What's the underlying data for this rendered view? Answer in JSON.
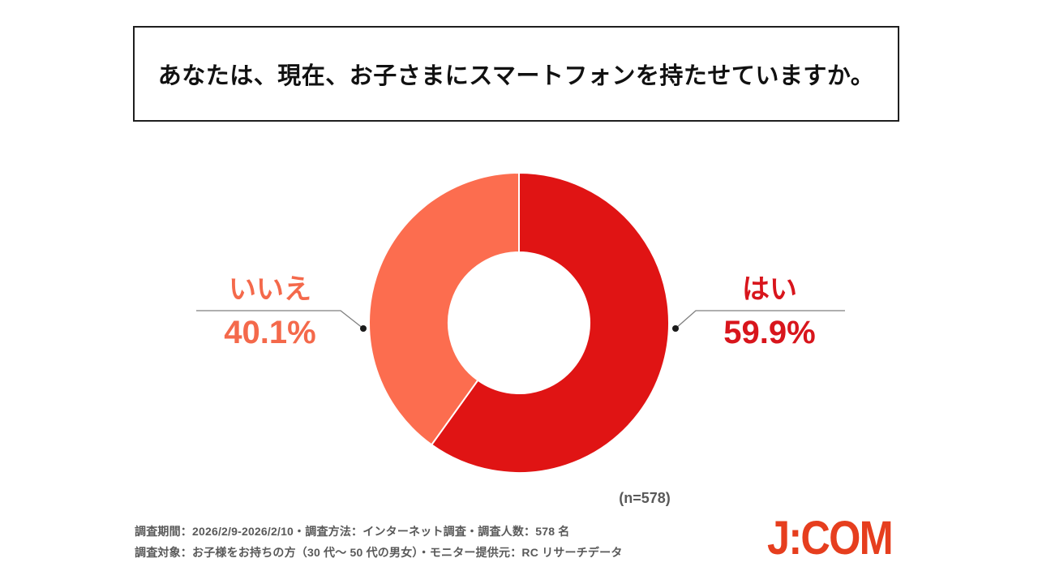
{
  "title": "あなたは、現在、お子さまにスマートフォンを持たせていますか。",
  "chart_data": {
    "type": "pie",
    "subtype": "donut",
    "title": "あなたは、現在、お子さまにスマートフォンを持たせていますか。",
    "categories": [
      "はい",
      "いいえ"
    ],
    "values": [
      59.9,
      40.1
    ],
    "unit": "%",
    "colors": [
      "#E01414",
      "#FC6D4F"
    ],
    "label_colors": [
      "#D8151C",
      "#F4694B"
    ],
    "start_angle": "top",
    "direction": "clockwise",
    "inner_radius_ratio": 0.47,
    "legend": "none",
    "sample_label": "(n=578)"
  },
  "callouts": {
    "yes": {
      "name": "はい",
      "value": "59.9%"
    },
    "no": {
      "name": "いいえ",
      "value": "40.1%"
    }
  },
  "footnote": {
    "line1": "調査期間：2026/2/9-2026/2/10・調査方法：インターネット調査・調査人数：578 名",
    "line2": "調査対象：お子様をお持ちの方（30 代～ 50 代の男女）・モニター提供元：RC リサーチデータ"
  },
  "logo": {
    "text": "J:COM",
    "color": "#E63E1E"
  },
  "palette": {
    "note_text": "#595959",
    "leader_line": "#7F7F7F",
    "leader_dot": "#1A1A1A",
    "box_border": "#1F1F1F"
  }
}
